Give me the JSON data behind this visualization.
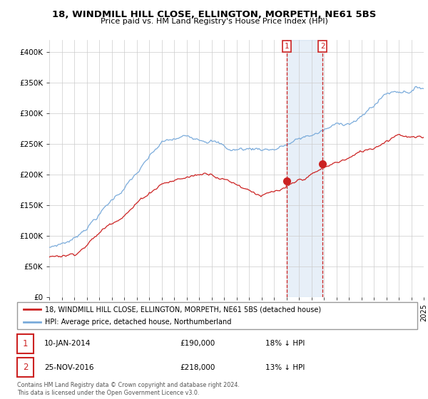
{
  "title": "18, WINDMILL HILL CLOSE, ELLINGTON, MORPETH, NE61 5BS",
  "subtitle": "Price paid vs. HM Land Registry's House Price Index (HPI)",
  "legend_line1": "18, WINDMILL HILL CLOSE, ELLINGTON, MORPETH, NE61 5BS (detached house)",
  "legend_line2": "HPI: Average price, detached house, Northumberland",
  "annotation1_date": "10-JAN-2014",
  "annotation1_price": "£190,000",
  "annotation1_hpi": "18% ↓ HPI",
  "annotation1_year": 2014.04,
  "annotation1_value": 190000,
  "annotation2_date": "25-NOV-2016",
  "annotation2_price": "£218,000",
  "annotation2_hpi": "13% ↓ HPI",
  "annotation2_year": 2016.9,
  "annotation2_value": 218000,
  "footer": "Contains HM Land Registry data © Crown copyright and database right 2024.\nThis data is licensed under the Open Government Licence v3.0.",
  "hpi_color": "#7aabdb",
  "price_color": "#cc2222",
  "annotation_color": "#cc2222",
  "background_color": "#ffffff",
  "grid_color": "#cccccc",
  "ylim": [
    0,
    420000
  ],
  "xlim": [
    1995,
    2025
  ],
  "yticks": [
    0,
    50000,
    100000,
    150000,
    200000,
    250000,
    300000,
    350000,
    400000
  ],
  "ytick_labels": [
    "£0",
    "£50K",
    "£100K",
    "£150K",
    "£200K",
    "£250K",
    "£300K",
    "£350K",
    "£400K"
  ]
}
